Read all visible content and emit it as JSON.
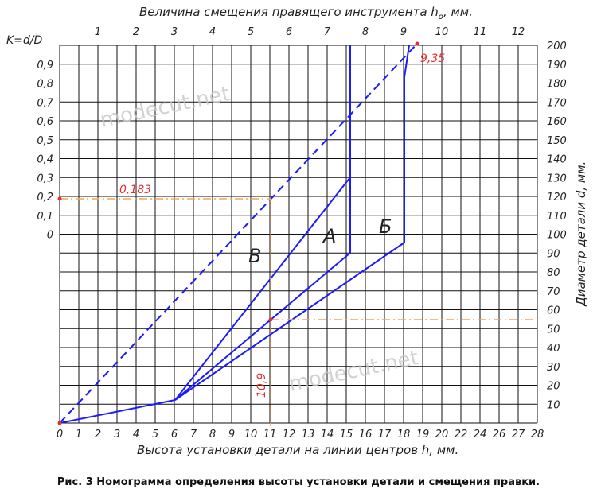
{
  "top_axis": {
    "title": "Величина смещения правящего инструмента h",
    "subscript": "о",
    "unit": ", мм.",
    "ticks": [
      "1",
      "2",
      "3",
      "4",
      "5",
      "6",
      "7",
      "8",
      "9",
      "10",
      "11",
      "12"
    ]
  },
  "left_axis": {
    "title": "K=d/D",
    "ticks": [
      "0,9",
      "0,8",
      "0,7",
      "0,6",
      "0,5",
      "0,4",
      "0,3",
      "0,2",
      "0,1",
      "0"
    ]
  },
  "right_axis": {
    "title": "Диаметр детали d, мм.",
    "ticks": [
      "200",
      "190",
      "180",
      "170",
      "160",
      "150",
      "140",
      "130",
      "120",
      "110",
      "100",
      "90",
      "80",
      "70",
      "60",
      "50",
      "40",
      "30",
      "20",
      "10"
    ]
  },
  "bottom_axis": {
    "title": "Высота установки детали на линии центров h, мм.",
    "ticks": [
      "0",
      "1",
      "2",
      "3",
      "4",
      "5",
      "6",
      "7",
      "8",
      "9",
      "10",
      "11",
      "12",
      "13",
      "14",
      "15",
      "16",
      "17",
      "18",
      "19",
      "20",
      "22",
      "24",
      "26",
      "27",
      "28"
    ]
  },
  "annotations": {
    "k_value": "0,183",
    "h_value": "10,9",
    "h0_value": "9,35"
  },
  "zones": [
    "В",
    "А",
    "Б"
  ],
  "watermarks": [
    "modecut.net",
    "modecut.net"
  ],
  "caption": "Рис. 3 Номограмма определения высоты установки детали и смещения правки."
}
